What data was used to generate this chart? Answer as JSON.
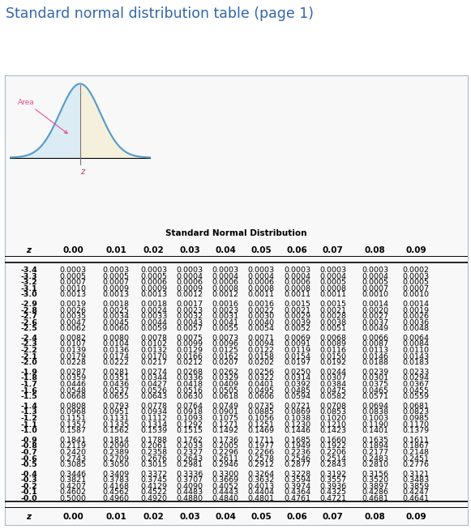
{
  "title": "Standard normal distribution table (page 1)",
  "title_color": "#3366aa",
  "subtitle": "Standard Normal Distribution",
  "col_headers": [
    "z",
    "0.00",
    "0.01",
    "0.02",
    "0.03",
    "0.04",
    "0.05",
    "0.06",
    "0.07",
    "0.08",
    "0.09"
  ],
  "rows": [
    [
      "-3.4",
      "0.0003",
      "0.0003",
      "0.0003",
      "0.0003",
      "0.0003",
      "0.0003",
      "0.0003",
      "0.0003",
      "0.0003",
      "0.0002"
    ],
    [
      "-3.3",
      "0.0005",
      "0.0005",
      "0.0005",
      "0.0004",
      "0.0004",
      "0.0004",
      "0.0004",
      "0.0004",
      "0.0004",
      "0.0003"
    ],
    [
      "-3.2",
      "0.0007",
      "0.0007",
      "0.0006",
      "0.0006",
      "0.0006",
      "0.0006",
      "0.0006",
      "0.0005",
      "0.0005",
      "0.0005"
    ],
    [
      "-3.1",
      "0.0010",
      "0.0009",
      "0.0009",
      "0.0009",
      "0.0008",
      "0.0008",
      "0.0008",
      "0.0008",
      "0.0007",
      "0.0007"
    ],
    [
      "-3.0",
      "0.0013",
      "0.0013",
      "0.0013",
      "0.0012",
      "0.0012",
      "0.0011",
      "0.0011",
      "0.0011",
      "0.0010",
      "0.0010"
    ],
    [
      "-2.9",
      "0.0019",
      "0.0018",
      "0.0018",
      "0.0017",
      "0.0016",
      "0.0016",
      "0.0015",
      "0.0015",
      "0.0014",
      "0.0014"
    ],
    [
      "-2.8",
      "0.0026",
      "0.0025",
      "0.0024",
      "0.0023",
      "0.0023",
      "0.0022",
      "0.0021",
      "0.0021",
      "0.0020",
      "0.0019"
    ],
    [
      "-2.7",
      "0.0035",
      "0.0034",
      "0.0033",
      "0.0032",
      "0.0031",
      "0.0030",
      "0.0029",
      "0.0028",
      "0.0027",
      "0.0026"
    ],
    [
      "-2.6",
      "0.0047",
      "0.0045",
      "0.0044",
      "0.0043",
      "0.0041",
      "0.0040",
      "0.0039",
      "0.0038",
      "0.0037",
      "0.0036"
    ],
    [
      "-2.5",
      "0.0062",
      "0.0060",
      "0.0059",
      "0.0057",
      "0.0055",
      "0.0054",
      "0.0052",
      "0.0051",
      "0.0049",
      "0.0048"
    ],
    [
      "-2.4",
      "0.0082",
      "0.0080",
      "0.0078",
      "0.0075",
      "0.0073",
      "0.0071",
      "0.0069",
      "0.0068",
      "0.0066",
      "0.0064"
    ],
    [
      "-2.3",
      "0.0107",
      "0.0104",
      "0.0102",
      "0.0099",
      "0.0096",
      "0.0094",
      "0.0091",
      "0.0089",
      "0.0087",
      "0.0084"
    ],
    [
      "-2.2",
      "0.0139",
      "0.0136",
      "0.0132",
      "0.0129",
      "0.0125",
      "0.0122",
      "0.0119",
      "0.0116",
      "0.0113",
      "0.0110"
    ],
    [
      "-2.1",
      "0.0179",
      "0.0174",
      "0.0170",
      "0.0166",
      "0.0162",
      "0.0158",
      "0.0154",
      "0.0150",
      "0.0146",
      "0.0143"
    ],
    [
      "-2.0",
      "0.0228",
      "0.0222",
      "0.0217",
      "0.0212",
      "0.0207",
      "0.0202",
      "0.0197",
      "0.0192",
      "0.0188",
      "0.0183"
    ],
    [
      "-1.9",
      "0.0287",
      "0.0281",
      "0.0274",
      "0.0268",
      "0.0262",
      "0.0256",
      "0.0250",
      "0.0244",
      "0.0239",
      "0.0233"
    ],
    [
      "-1.8",
      "0.0359",
      "0.0351",
      "0.0344",
      "0.0336",
      "0.0329",
      "0.0322",
      "0.0314",
      "0.0307",
      "0.0301",
      "0.0294"
    ],
    [
      "-1.7",
      "0.0446",
      "0.0436",
      "0.0427",
      "0.0418",
      "0.0409",
      "0.0401",
      "0.0392",
      "0.0384",
      "0.0375",
      "0.0367"
    ],
    [
      "-1.6",
      "0.0548",
      "0.0537",
      "0.0526",
      "0.0516",
      "0.0505",
      "0.0495",
      "0.0485",
      "0.0475",
      "0.0465",
      "0.0455"
    ],
    [
      "-1.5",
      "0.0668",
      "0.0655",
      "0.0643",
      "0.0630",
      "0.0618",
      "0.0606",
      "0.0594",
      "0.0582",
      "0.0571",
      "0.0559"
    ],
    [
      "-1.4",
      "0.0808",
      "0.0793",
      "0.0778",
      "0.0764",
      "0.0749",
      "0.0735",
      "0.0721",
      "0.0708",
      "0.0694",
      "0.0681"
    ],
    [
      "-1.3",
      "0.0968",
      "0.0951",
      "0.0934",
      "0.0918",
      "0.0901",
      "0.0885",
      "0.0869",
      "0.0853",
      "0.0838",
      "0.0823"
    ],
    [
      "-1.2",
      "0.1151",
      "0.1131",
      "0.1112",
      "0.1093",
      "0.1075",
      "0.1056",
      "0.1038",
      "0.1020",
      "0.1003",
      "0.0985"
    ],
    [
      "-1.1",
      "0.1357",
      "0.1335",
      "0.1314",
      "0.1292",
      "0.1271",
      "0.1251",
      "0.1230",
      "0.1210",
      "0.1190",
      "0.1170"
    ],
    [
      "-1.0",
      "0.1587",
      "0.1562",
      "0.1539",
      "0.1515",
      "0.1492",
      "0.1469",
      "0.1446",
      "0.1423",
      "0.1401",
      "0.1379"
    ],
    [
      "-0.9",
      "0.1841",
      "0.1814",
      "0.1788",
      "0.1762",
      "0.1736",
      "0.1711",
      "0.1685",
      "0.1660",
      "0.1635",
      "0.1611"
    ],
    [
      "-0.8",
      "0.2119",
      "0.2090",
      "0.2061",
      "0.2033",
      "0.2005",
      "0.1977",
      "0.1949",
      "0.1922",
      "0.1894",
      "0.1867"
    ],
    [
      "-0.7",
      "0.2420",
      "0.2389",
      "0.2358",
      "0.2327",
      "0.2296",
      "0.2266",
      "0.2236",
      "0.2206",
      "0.2177",
      "0.2148"
    ],
    [
      "-0.6",
      "0.2743",
      "0.2709",
      "0.2676",
      "0.2643",
      "0.2611",
      "0.2578",
      "0.2546",
      "0.2514",
      "0.2483",
      "0.2451"
    ],
    [
      "-0.5",
      "0.3085",
      "0.3050",
      "0.3015",
      "0.2981",
      "0.2946",
      "0.2912",
      "0.2877",
      "0.2843",
      "0.2810",
      "0.2776"
    ],
    [
      "-0.4",
      "0.3446",
      "0.3409",
      "0.3372",
      "0.3336",
      "0.3300",
      "0.3264",
      "0.3228",
      "0.3192",
      "0.3156",
      "0.3121"
    ],
    [
      "-0.3",
      "0.3821",
      "0.3783",
      "0.3745",
      "0.3707",
      "0.3669",
      "0.3632",
      "0.3594",
      "0.3557",
      "0.3520",
      "0.3483"
    ],
    [
      "-0.2",
      "0.4207",
      "0.4168",
      "0.4129",
      "0.4090",
      "0.4052",
      "0.4013",
      "0.3974",
      "0.3936",
      "0.3897",
      "0.3859"
    ],
    [
      "-0.1",
      "0.4602",
      "0.4562",
      "0.4522",
      "0.4483",
      "0.4443",
      "0.4404",
      "0.4364",
      "0.4325",
      "0.4286",
      "0.4247"
    ],
    [
      "-0.0",
      "0.5000",
      "0.4960",
      "0.4920",
      "0.4880",
      "0.4840",
      "0.4801",
      "0.4761",
      "0.4721",
      "0.4681",
      "0.4641"
    ]
  ],
  "group_ends": [
    4,
    9,
    14,
    19,
    24,
    29
  ],
  "curve_fill_color": "#f5f0dc",
  "curve_left_color": "#d0e8f5",
  "curve_line_color": "#5599cc",
  "area_label_color": "#e05090",
  "z_label_color": "#cc3366",
  "border_color": "#aabbcc",
  "bg_color": "#f8f8f8"
}
